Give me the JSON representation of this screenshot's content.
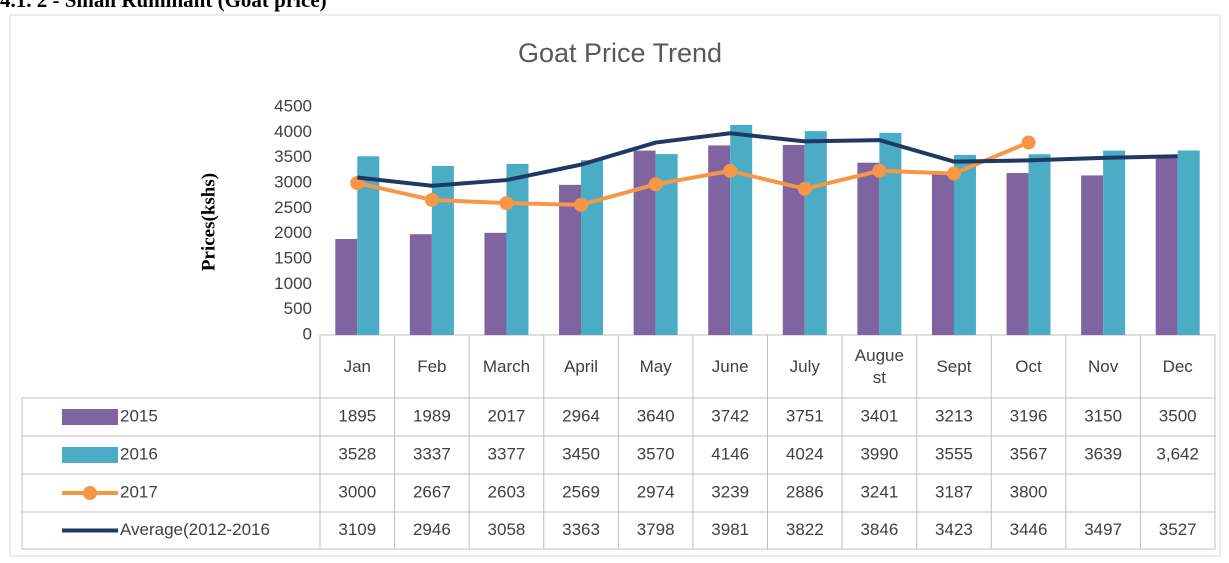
{
  "heading": "4.1. 2 - Small Ruminant (Goat price)",
  "chart_data": {
    "type": "bar",
    "title": "Goat Price Trend",
    "y_label": "Prices(kshs)",
    "categories": [
      "Jan",
      "Feb",
      "March",
      "April",
      "May",
      "June",
      "July",
      "Auguest",
      "Sept",
      "Oct",
      "Nov",
      "Dec"
    ],
    "ylim": [
      0,
      4500
    ],
    "yticks": [
      0,
      500,
      1000,
      1500,
      2000,
      2500,
      3000,
      3500,
      4000,
      4500
    ],
    "grid": false,
    "legend": "table",
    "series": [
      {
        "name": "2015",
        "type": "bar",
        "color": "#8064a2",
        "values": [
          1895,
          1989,
          2017,
          2964,
          3640,
          3742,
          3751,
          3401,
          3213,
          3196,
          3150,
          3500
        ]
      },
      {
        "name": "2016",
        "type": "bar",
        "color": "#4bacc6",
        "values": [
          3528,
          3337,
          3377,
          3450,
          3570,
          4146,
          4024,
          3990,
          3555,
          3567,
          3639,
          3642
        ],
        "value_labels": [
          "3528",
          "3337",
          "3377",
          "3450",
          "3570",
          "4146",
          "4024",
          "3990",
          "3555",
          "3567",
          "3639",
          "3,642"
        ]
      },
      {
        "name": "2017",
        "type": "line",
        "marker": true,
        "color": "#f79646",
        "values": [
          3000,
          2667,
          2603,
          2569,
          2974,
          3239,
          2886,
          3241,
          3187,
          3800,
          null,
          null
        ]
      },
      {
        "name": "Average(2012-2016",
        "type": "line",
        "marker": false,
        "color": "#1f3864",
        "values": [
          3109,
          2946,
          3058,
          3363,
          3798,
          3981,
          3822,
          3846,
          3423,
          3446,
          3497,
          3527
        ]
      }
    ]
  }
}
